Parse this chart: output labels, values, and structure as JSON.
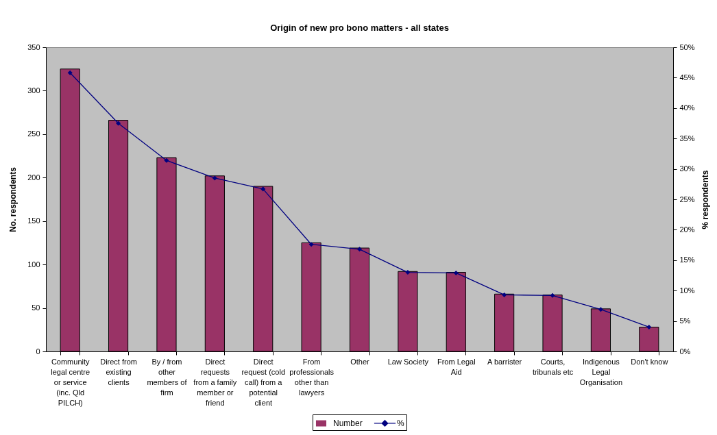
{
  "chart_data": {
    "type": "bar",
    "title": "Origin of new pro bono matters - all states",
    "categories": [
      "Community legal centre or service (inc. Qld PILCH)",
      "Direct from existing clients",
      "By / from other members of firm",
      "Direct requests from a family member or friend",
      "Direct request (cold call) from a potential client",
      "From professionals other than lawyers",
      "Other",
      "Law Society",
      "From Legal Aid",
      "A barrister",
      "Courts, tribunals etc",
      "Indigenous Legal Organisation",
      "Don't know"
    ],
    "ylabel": "No. respondents",
    "y2label": "% respondents",
    "series": [
      {
        "name": "Number",
        "color": "#993366",
        "values": [
          325,
          266,
          223,
          202,
          190,
          125,
          119,
          92,
          91,
          66,
          65,
          49,
          28
        ]
      },
      {
        "name": "%",
        "type": "line",
        "axis": "y2",
        "color": "#000080",
        "values": [
          45.8,
          37.5,
          31.4,
          28.5,
          26.7,
          17.6,
          16.8,
          13.0,
          12.9,
          9.3,
          9.2,
          6.9,
          4.0
        ]
      }
    ],
    "ylim": [
      0,
      350
    ],
    "yticks": [
      0,
      50,
      100,
      150,
      200,
      250,
      300,
      350
    ],
    "y2lim": [
      0,
      50
    ],
    "y2ticks": [
      {
        "value": 0,
        "label": "0%"
      },
      {
        "value": 5,
        "label": "5%"
      },
      {
        "value": 10,
        "label": "10%"
      },
      {
        "value": 15,
        "label": "15%"
      },
      {
        "value": 20,
        "label": "20%"
      },
      {
        "value": 25,
        "label": "25%"
      },
      {
        "value": 30,
        "label": "30%"
      },
      {
        "value": 35,
        "label": "35%"
      },
      {
        "value": 40,
        "label": "40%"
      },
      {
        "value": 45,
        "label": "45%"
      },
      {
        "value": 50,
        "label": "50%"
      }
    ],
    "legend": "bottom",
    "marker": "diamond"
  }
}
